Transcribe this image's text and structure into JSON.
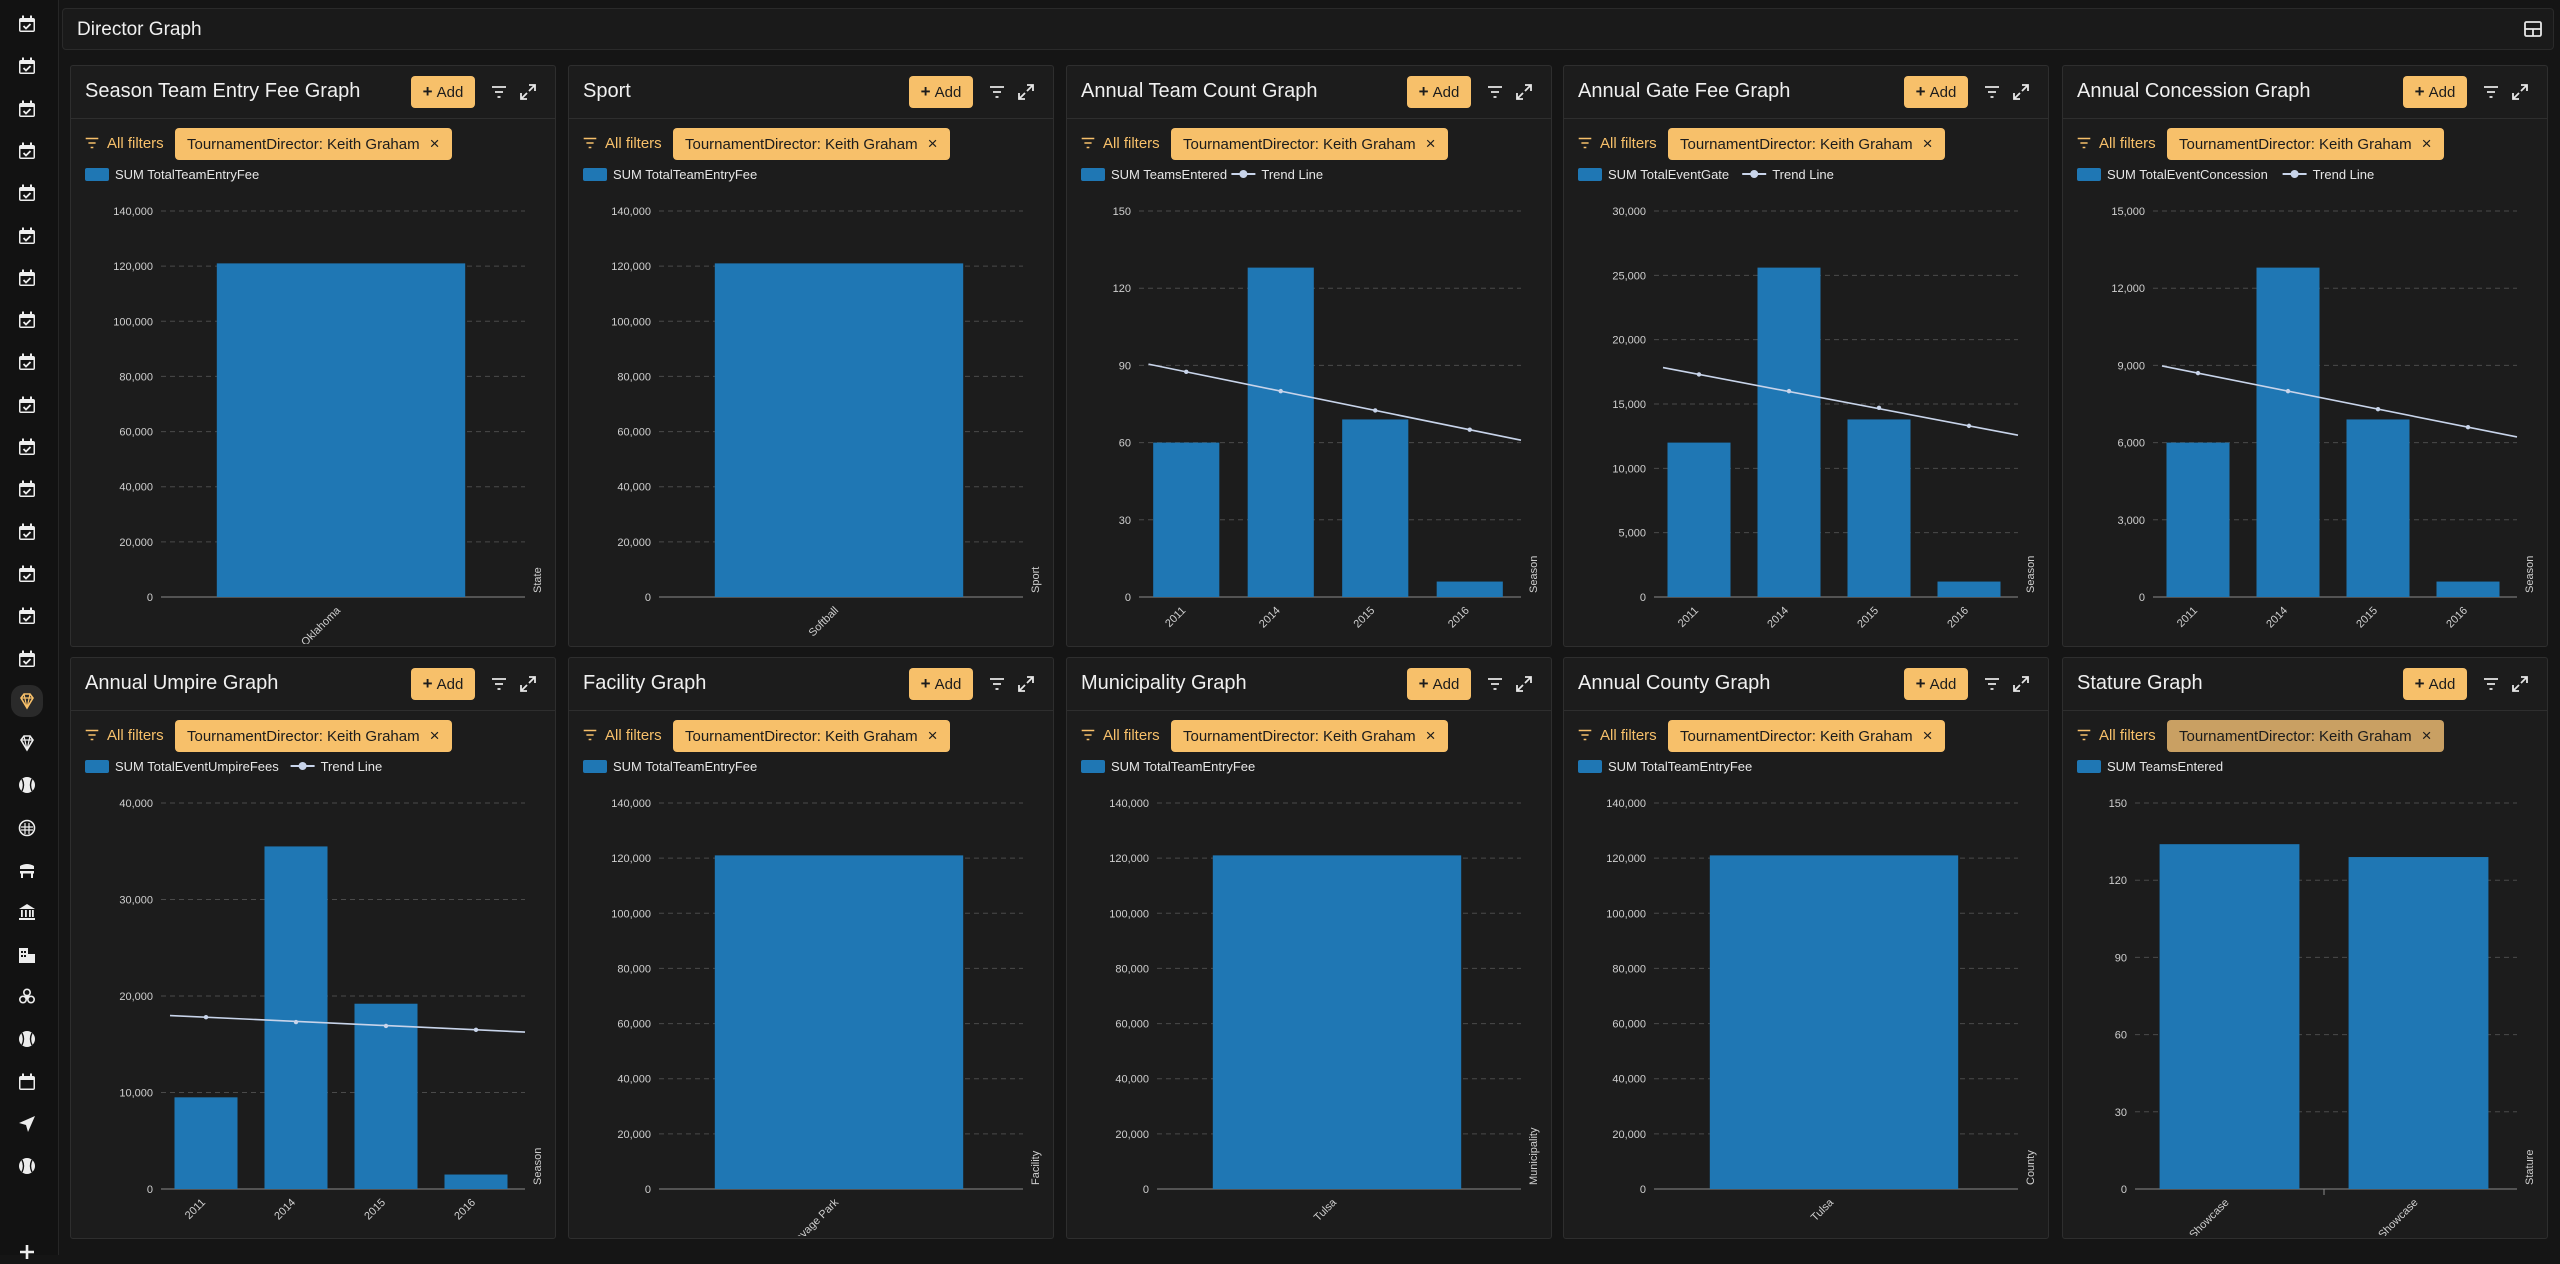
{
  "page": {
    "title": "Director Graph",
    "layout_icon": "layout-grid-icon"
  },
  "colors": {
    "bar": "#1f77b4",
    "trend": "#c8d4ea",
    "accent": "#f7c06a",
    "grid": "#4a4a4a",
    "text": "#e6e6e6",
    "tick": "#cfcfcf"
  },
  "sidebar": {
    "icons": [
      "calendar-check-icon",
      "calendar-check-icon",
      "calendar-check-icon",
      "calendar-check-icon",
      "calendar-check-icon",
      "calendar-check-icon",
      "calendar-check-icon",
      "calendar-check-icon",
      "calendar-check-icon",
      "calendar-check-icon",
      "calendar-check-icon",
      "calendar-check-icon",
      "calendar-check-icon",
      "calendar-check-icon",
      "calendar-check-icon",
      "calendar-check-icon",
      "diamond-icon",
      "diamond-icon",
      "baseball-icon",
      "mask-icon",
      "bench-icon",
      "bank-icon",
      "building-icon",
      "biohazard-icon",
      "baseball-icon",
      "calendar-icon",
      "send-icon",
      "baseball-icon",
      "plus-icon"
    ]
  },
  "panel_controls": {
    "add_label": "Add",
    "all_filters_label": "All filters",
    "filter_chip": "TournamentDirector: Keith Graham",
    "trend_label": "Trend Line"
  },
  "panels": [
    {
      "title": "Season Team Entry Fee Graph",
      "chart_data": {
        "type": "bar",
        "legend": [
          "SUM TotalTeamEntryFee"
        ],
        "categories": [
          "Oklahoma"
        ],
        "values": [
          121000
        ],
        "ylim": [
          0,
          140000
        ],
        "yticks": [
          0,
          20000,
          40000,
          60000,
          80000,
          100000,
          120000,
          140000
        ],
        "xlabel": "State",
        "grid": true,
        "legend_position": "top-left"
      }
    },
    {
      "title": "Sport",
      "chart_data": {
        "type": "bar",
        "legend": [
          "SUM TotalTeamEntryFee"
        ],
        "categories": [
          "Softball"
        ],
        "values": [
          121000
        ],
        "ylim": [
          0,
          140000
        ],
        "yticks": [
          0,
          20000,
          40000,
          60000,
          80000,
          100000,
          120000,
          140000
        ],
        "xlabel": "Sport",
        "grid": true,
        "legend_position": "top-left"
      }
    },
    {
      "title": "Annual Team Count Graph",
      "chart_data": {
        "type": "bar",
        "legend": [
          "SUM TeamsEntered"
        ],
        "categories": [
          "2011",
          "2014",
          "2015",
          "2016"
        ],
        "values": [
          60,
          128,
          69,
          6
        ],
        "trend": [
          87.5,
          80,
          72.5,
          65
        ],
        "ylim": [
          0,
          150
        ],
        "yticks": [
          0,
          30,
          60,
          90,
          120,
          150
        ],
        "xlabel": "Season",
        "grid": true,
        "legend_position": "top-left"
      }
    },
    {
      "title": "Annual Gate Fee Graph",
      "chart_data": {
        "type": "bar",
        "legend": [
          "SUM TotalEventGate"
        ],
        "categories": [
          "2011",
          "2014",
          "2015",
          "2016"
        ],
        "values": [
          12000,
          25600,
          13800,
          1200
        ],
        "trend": [
          17300,
          16000,
          14700,
          13300
        ],
        "ylim": [
          0,
          30000
        ],
        "yticks": [
          0,
          5000,
          10000,
          15000,
          20000,
          25000,
          30000
        ],
        "xlabel": "Season",
        "grid": true,
        "legend_position": "top-left"
      }
    },
    {
      "title": "Annual Concession Graph",
      "chart_data": {
        "type": "bar",
        "legend": [
          "SUM TotalEventConcession"
        ],
        "categories": [
          "2011",
          "2014",
          "2015",
          "2016"
        ],
        "values": [
          6000,
          12800,
          6900,
          600
        ],
        "trend": [
          8700,
          8000,
          7300,
          6600
        ],
        "ylim": [
          0,
          15000
        ],
        "yticks": [
          0,
          3000,
          6000,
          9000,
          12000,
          15000
        ],
        "xlabel": "Season",
        "grid": true,
        "legend_position": "top-left"
      }
    },
    {
      "title": "Annual Umpire Graph",
      "chart_data": {
        "type": "bar",
        "legend": [
          "SUM TotalEventUmpireFees"
        ],
        "categories": [
          "2011",
          "2014",
          "2015",
          "2016"
        ],
        "values": [
          9500,
          35500,
          19200,
          1500
        ],
        "trend": [
          17800,
          17300,
          16900,
          16500
        ],
        "ylim": [
          0,
          40000
        ],
        "yticks": [
          0,
          10000,
          20000,
          30000,
          40000
        ],
        "xlabel": "Season",
        "grid": true,
        "legend_position": "top-left"
      }
    },
    {
      "title": "Facility Graph",
      "chart_data": {
        "type": "bar",
        "legend": [
          "SUM TotalTeamEntryFee"
        ],
        "categories": [
          "Savage Park"
        ],
        "values": [
          121000
        ],
        "ylim": [
          0,
          140000
        ],
        "yticks": [
          0,
          20000,
          40000,
          60000,
          80000,
          100000,
          120000,
          140000
        ],
        "xlabel": "Facility",
        "grid": true,
        "legend_position": "top-left"
      }
    },
    {
      "title": "Municipality Graph",
      "chart_data": {
        "type": "bar",
        "legend": [
          "SUM TotalTeamEntryFee"
        ],
        "categories": [
          "Tulsa"
        ],
        "values": [
          121000
        ],
        "ylim": [
          0,
          140000
        ],
        "yticks": [
          0,
          20000,
          40000,
          60000,
          80000,
          100000,
          120000,
          140000
        ],
        "xlabel": "Municipality",
        "grid": true,
        "legend_position": "top-left"
      }
    },
    {
      "title": "Annual County Graph",
      "chart_data": {
        "type": "bar",
        "legend": [
          "SUM TotalTeamEntryFee"
        ],
        "categories": [
          "Tulsa"
        ],
        "values": [
          121000
        ],
        "ylim": [
          0,
          140000
        ],
        "yticks": [
          0,
          20000,
          40000,
          60000,
          80000,
          100000,
          120000,
          140000
        ],
        "xlabel": "County",
        "grid": true,
        "legend_position": "top-left"
      }
    },
    {
      "title": "Stature Graph",
      "chart_data": {
        "type": "bar",
        "legend": [
          "SUM TeamsEntered"
        ],
        "categories": [
          "Showcase",
          "USSSA Showcase"
        ],
        "values": [
          134,
          129
        ],
        "ylim": [
          0,
          150
        ],
        "yticks": [
          0,
          30,
          60,
          90,
          120,
          150
        ],
        "xlabel": "Stature",
        "grid": true,
        "legend_position": "top-left"
      }
    }
  ]
}
